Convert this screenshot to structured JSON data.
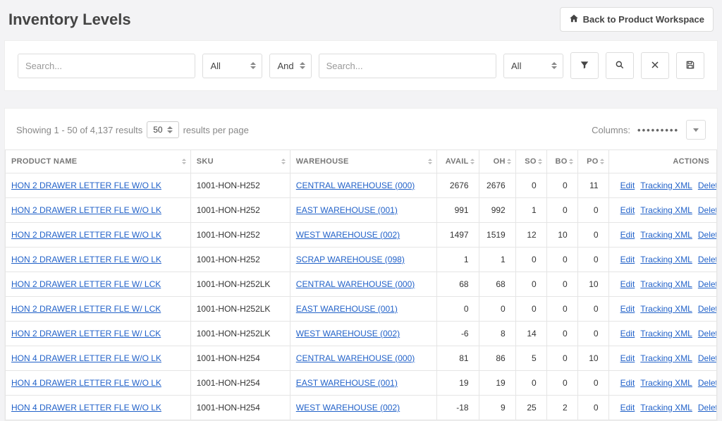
{
  "header": {
    "title": "Inventory Levels",
    "back_label": "Back to Product Workspace"
  },
  "filters": {
    "search1_placeholder": "Search...",
    "field_select": "All",
    "logic_select": "And",
    "search2_placeholder": "Search...",
    "field_select2": "All"
  },
  "results": {
    "showing_prefix": "Showing 1 - 50 of 4,137 results",
    "per_page": "50",
    "per_page_suffix": "results per page",
    "columns_label": "Columns:"
  },
  "table": {
    "headers": {
      "product": "PRODUCT NAME",
      "sku": "SKU",
      "warehouse": "WAREHOUSE",
      "avail": "AVAIL",
      "oh": "OH",
      "so": "SO",
      "bo": "BO",
      "po": "PO",
      "actions": "ACTIONS"
    },
    "action_labels": {
      "edit": "Edit",
      "tracking": "Tracking XML",
      "delete": "Delete"
    },
    "rows": [
      {
        "product": "HON 2 DRAWER LETTER FLE W/O LK",
        "sku": "1001-HON-H252",
        "warehouse": "CENTRAL WAREHOUSE (000)",
        "avail": "2676",
        "oh": "2676",
        "so": "0",
        "bo": "0",
        "po": "11"
      },
      {
        "product": "HON 2 DRAWER LETTER FLE W/O LK",
        "sku": "1001-HON-H252",
        "warehouse": "EAST WAREHOUSE (001)",
        "avail": "991",
        "oh": "992",
        "so": "1",
        "bo": "0",
        "po": "0"
      },
      {
        "product": "HON 2 DRAWER LETTER FLE W/O LK",
        "sku": "1001-HON-H252",
        "warehouse": "WEST WAREHOUSE (002)",
        "avail": "1497",
        "oh": "1519",
        "so": "12",
        "bo": "10",
        "po": "0"
      },
      {
        "product": "HON 2 DRAWER LETTER FLE W/O LK",
        "sku": "1001-HON-H252",
        "warehouse": "SCRAP WAREHOUSE (098)",
        "avail": "1",
        "oh": "1",
        "so": "0",
        "bo": "0",
        "po": "0"
      },
      {
        "product": "HON 2 DRAWER LETTER FLE W/ LCK",
        "sku": "1001-HON-H252LK",
        "warehouse": "CENTRAL WAREHOUSE (000)",
        "avail": "68",
        "oh": "68",
        "so": "0",
        "bo": "0",
        "po": "10"
      },
      {
        "product": "HON 2 DRAWER LETTER FLE W/ LCK",
        "sku": "1001-HON-H252LK",
        "warehouse": "EAST WAREHOUSE (001)",
        "avail": "0",
        "oh": "0",
        "so": "0",
        "bo": "0",
        "po": "0"
      },
      {
        "product": "HON 2 DRAWER LETTER FLE W/ LCK",
        "sku": "1001-HON-H252LK",
        "warehouse": "WEST WAREHOUSE (002)",
        "avail": "-6",
        "oh": "8",
        "so": "14",
        "bo": "0",
        "po": "0"
      },
      {
        "product": "HON 4 DRAWER LETTER FLE W/O LK",
        "sku": "1001-HON-H254",
        "warehouse": "CENTRAL WAREHOUSE (000)",
        "avail": "81",
        "oh": "86",
        "so": "5",
        "bo": "0",
        "po": "10"
      },
      {
        "product": "HON 4 DRAWER LETTER FLE W/O LK",
        "sku": "1001-HON-H254",
        "warehouse": "EAST WAREHOUSE (001)",
        "avail": "19",
        "oh": "19",
        "so": "0",
        "bo": "0",
        "po": "0"
      },
      {
        "product": "HON 4 DRAWER LETTER FLE W/O LK",
        "sku": "1001-HON-H254",
        "warehouse": "WEST WAREHOUSE (002)",
        "avail": "-18",
        "oh": "9",
        "so": "25",
        "bo": "2",
        "po": "0"
      }
    ]
  },
  "colors": {
    "link": "#2262c9",
    "border": "#e5e5e5",
    "page_bg": "#f3f3f5",
    "panel_bg": "#ffffff",
    "text_muted": "#888888"
  }
}
